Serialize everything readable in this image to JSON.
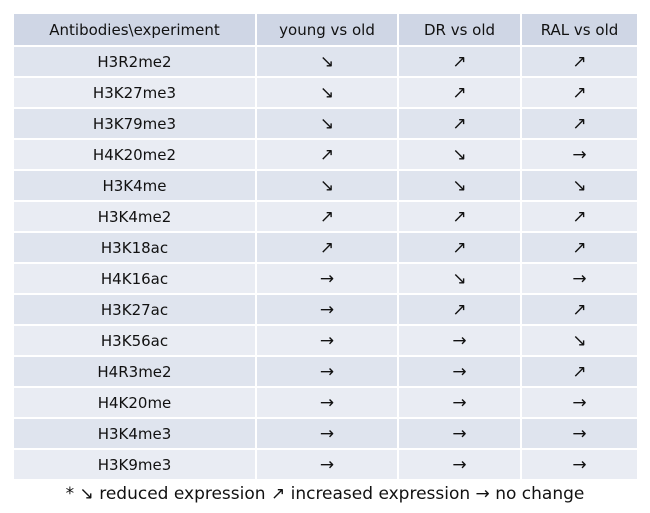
{
  "table": {
    "header": [
      "Antibodies\\experiment",
      "young vs old",
      "DR vs old",
      "RAL vs old"
    ],
    "rows": [
      [
        "H3R2me2",
        "↘",
        "↗",
        "↗"
      ],
      [
        "H3K27me3",
        "↘",
        "↗",
        "↗"
      ],
      [
        "H3K79me3",
        "↘",
        "↗",
        "↗"
      ],
      [
        "H4K20me2",
        "↗",
        "↘",
        "→"
      ],
      [
        "H3K4me",
        "↘",
        "↘",
        "↘"
      ],
      [
        "H3K4me2",
        "↗",
        "↗",
        "↗"
      ],
      [
        "H3K18ac",
        "↗",
        "↗",
        "↗"
      ],
      [
        "H4K16ac",
        "→",
        "↘",
        "→"
      ],
      [
        "H3K27ac",
        "→",
        "↗",
        "↗"
      ],
      [
        "H3K56ac",
        "→",
        "→",
        "↘"
      ],
      [
        "H4R3me2",
        "→",
        "→",
        "↗"
      ],
      [
        "H4K20me",
        "→",
        "→",
        "→"
      ],
      [
        "H3K4me3",
        "→",
        "→",
        "→"
      ],
      [
        "H3K9me3",
        "→",
        "→",
        "→"
      ]
    ]
  },
  "footnote": "* ↘ reduced expression  ↗ increased expression  → no change"
}
